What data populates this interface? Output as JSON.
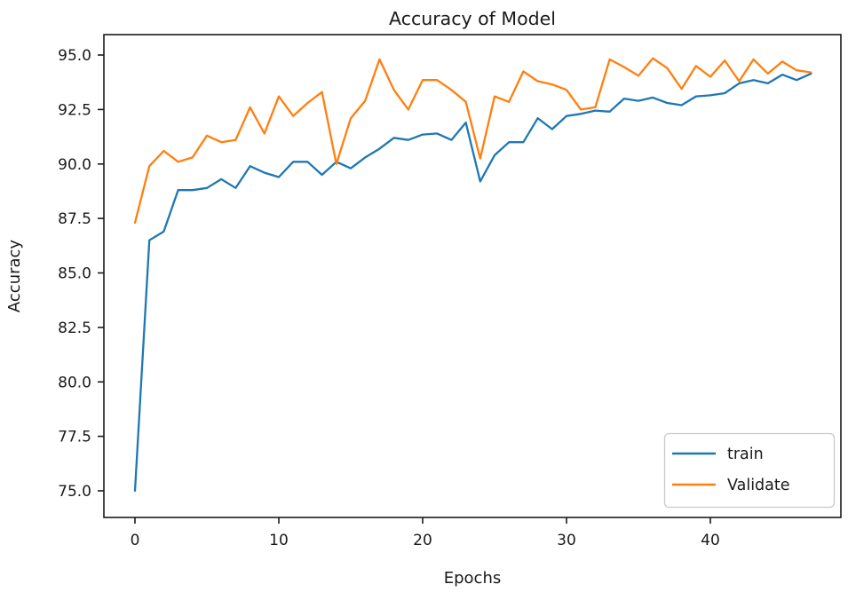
{
  "figure": {
    "background": "#ffffff",
    "text_color": "#1a1a1a"
  },
  "chart_data": {
    "type": "line",
    "title": "Accuracy of Model",
    "xlabel": "Epochs",
    "ylabel": "Accuracy",
    "grid": false,
    "legend_position": "lower right",
    "xlim": [
      -2.2,
      49.1
    ],
    "ylim": [
      73.8,
      95.9
    ],
    "x_ticks": [
      "0",
      "10",
      "20",
      "30",
      "40"
    ],
    "x_tick_values": [
      0,
      10,
      20,
      30,
      40
    ],
    "y_ticks": [
      "75.0",
      "77.5",
      "80.0",
      "82.5",
      "85.0",
      "87.5",
      "90.0",
      "92.5",
      "95.0"
    ],
    "y_tick_values": [
      75,
      77.5,
      80,
      82.5,
      85,
      87.5,
      90,
      92.5,
      95
    ],
    "epochs": [
      0,
      1,
      2,
      3,
      4,
      5,
      6,
      7,
      8,
      9,
      10,
      11,
      12,
      13,
      14,
      15,
      16,
      17,
      18,
      19,
      20,
      21,
      22,
      23,
      24,
      25,
      26,
      27,
      28,
      29,
      30,
      31,
      32,
      33,
      34,
      35,
      36,
      37,
      38,
      39,
      40,
      41,
      42,
      43,
      44,
      45,
      46,
      47
    ],
    "series": [
      {
        "name": "train",
        "color": "#1f77b4",
        "values": [
          75.0,
          86.5,
          86.9,
          88.8,
          88.8,
          88.9,
          89.3,
          88.9,
          89.9,
          89.6,
          89.4,
          90.1,
          90.1,
          89.5,
          90.1,
          89.8,
          90.3,
          90.7,
          91.2,
          91.1,
          91.35,
          91.4,
          91.1,
          91.9,
          89.2,
          90.4,
          91.0,
          91.0,
          92.1,
          91.6,
          92.2,
          92.3,
          92.45,
          92.4,
          93.0,
          92.9,
          93.05,
          92.8,
          92.7,
          93.1,
          93.15,
          93.25,
          93.7,
          93.85,
          93.7,
          94.1,
          93.85,
          94.15
        ]
      },
      {
        "name": "Validate",
        "color": "#ff7f0e",
        "values": [
          87.3,
          89.9,
          90.6,
          90.1,
          90.3,
          91.3,
          91.0,
          91.1,
          92.6,
          91.4,
          93.1,
          92.2,
          92.8,
          93.3,
          90.0,
          92.1,
          92.9,
          94.8,
          93.4,
          92.5,
          93.85,
          93.85,
          93.4,
          92.85,
          90.25,
          93.1,
          92.85,
          94.25,
          93.8,
          93.65,
          93.4,
          92.5,
          92.6,
          94.8,
          94.45,
          94.05,
          94.85,
          94.4,
          93.45,
          94.5,
          94.0,
          94.75,
          93.8,
          94.8,
          94.15,
          94.7,
          94.3,
          94.2
        ]
      }
    ]
  }
}
